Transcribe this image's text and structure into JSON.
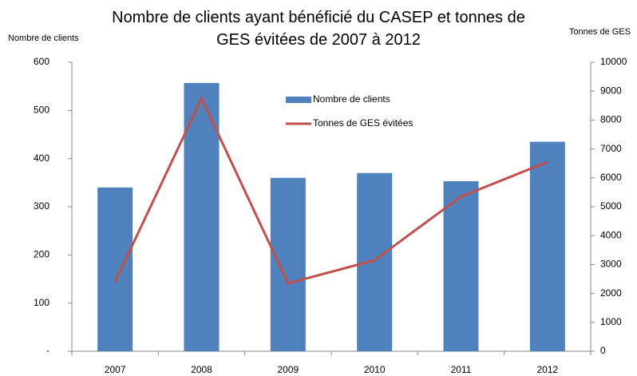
{
  "chart_data": {
    "type": "bar",
    "title": "Nombre de clients ayant bénéficié du CASEP et tonnes de GES évitées de 2007 à 2012",
    "y_label": "Nombre de clients",
    "y2_label": "Tonnes de GES",
    "categories": [
      "2007",
      "2008",
      "2009",
      "2010",
      "2011",
      "2012"
    ],
    "series": [
      {
        "name": "Nombre de clients",
        "type": "bar",
        "color": "#4f81bd",
        "values": [
          340,
          557,
          360,
          370,
          353,
          435
        ]
      },
      {
        "name": "Tonnes de GES évitées",
        "type": "line",
        "axis": "y2",
        "color": "#c0504d",
        "values": [
          2400,
          8750,
          2350,
          3150,
          5350,
          6550
        ]
      }
    ],
    "ylim": [
      0,
      600
    ],
    "yticks": [
      {
        "value": 0,
        "label": "-"
      },
      100,
      200,
      300,
      400,
      500,
      600
    ],
    "y2lim": [
      0,
      10000
    ],
    "y2ticks": [
      0,
      1000,
      2000,
      3000,
      4000,
      5000,
      6000,
      7000,
      8000,
      9000,
      10000
    ],
    "grid": false
  }
}
